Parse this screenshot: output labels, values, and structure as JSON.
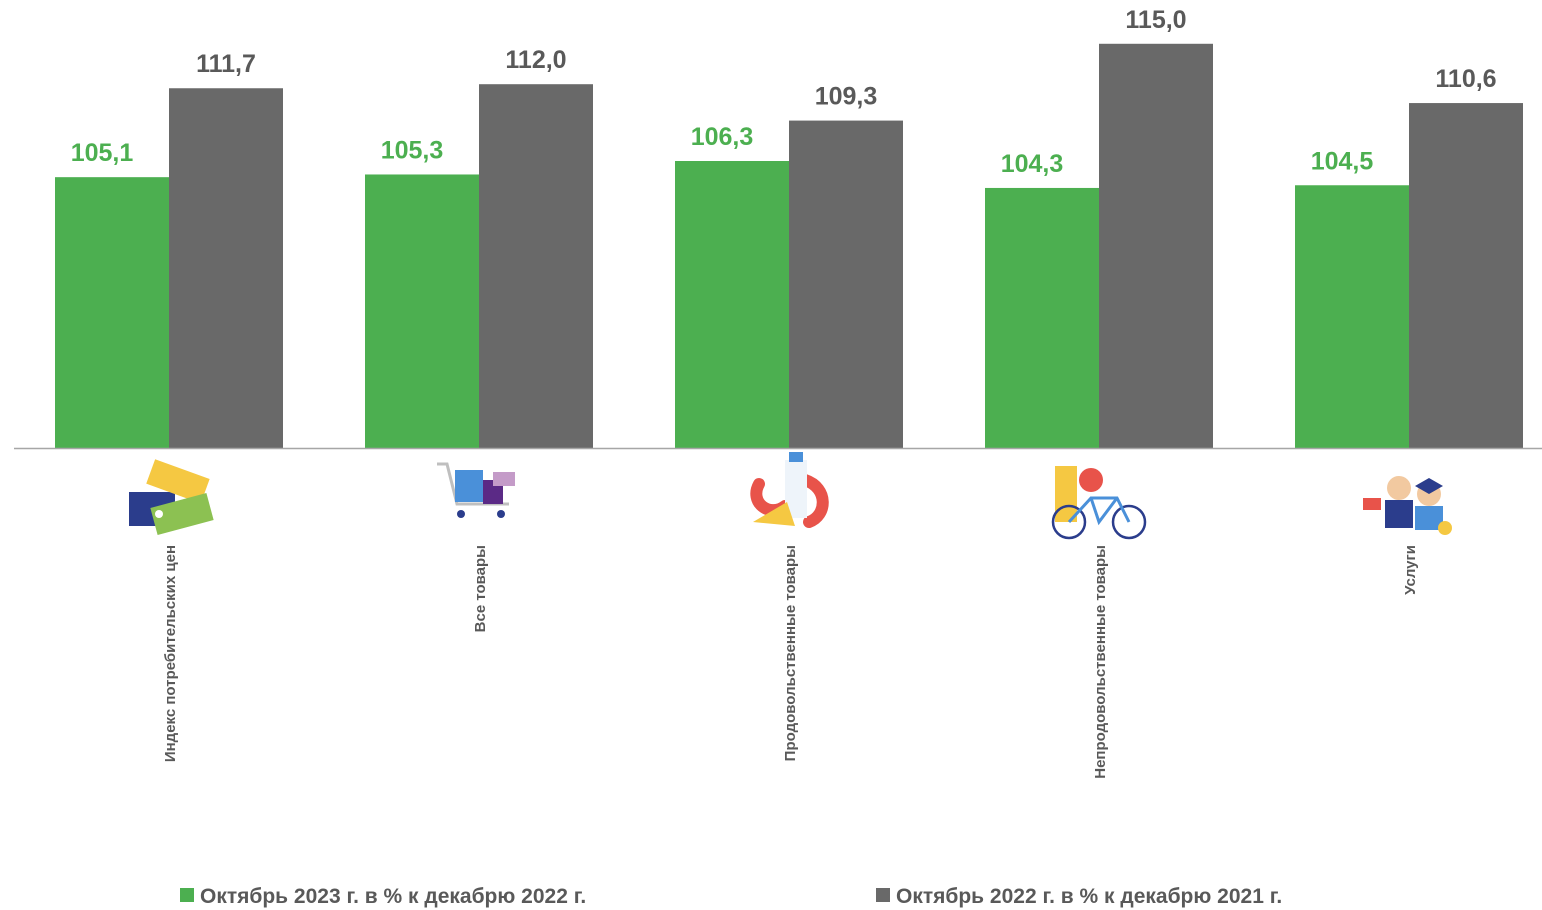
{
  "chart_data": {
    "type": "bar",
    "categories": [
      "Индекс потребительских цен",
      "Все товары",
      "Продовольственные товары",
      "Непродовольственные товары",
      "Услуги"
    ],
    "category_icons": [
      "price-tags-icon",
      "shopping-cart-icon",
      "food-products-icon",
      "non-food-goods-icon",
      "services-people-icon"
    ],
    "series": [
      {
        "name": "Октябрь 2023 г. в % к декабрю 2022 г.",
        "values": [
          105.1,
          105.3,
          106.3,
          104.3,
          104.5
        ],
        "labels": [
          "105,1",
          "105,3",
          "106,3",
          "104,3",
          "104,5"
        ],
        "color": "#4caf50",
        "label_color": "#4caf50"
      },
      {
        "name": "Октябрь 2022 г. в % к декабрю 2021 г.",
        "values": [
          111.7,
          112.0,
          109.3,
          115.0,
          110.6
        ],
        "labels": [
          "111,7",
          "112,0",
          "109,3",
          "115,0",
          "110,6"
        ],
        "color": "#696969",
        "label_color": "#595959"
      }
    ],
    "ylim": [
      85,
      115.8
    ],
    "grid": false,
    "legend_position": "bottom",
    "axis_color": "#a6a6a6"
  }
}
